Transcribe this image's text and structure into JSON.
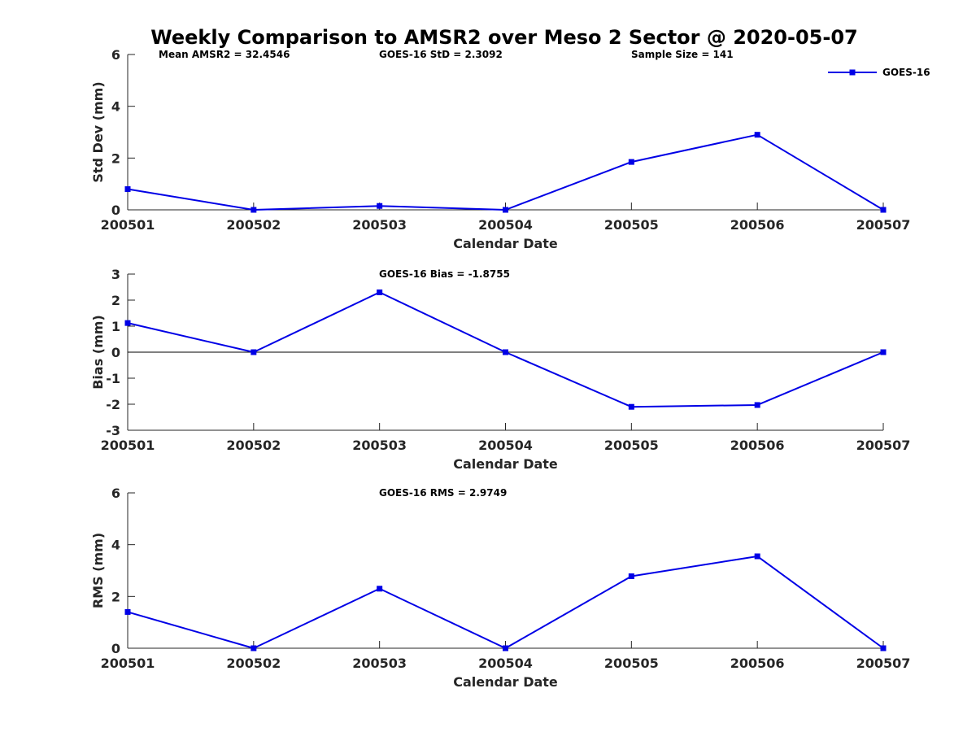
{
  "title": "Weekly Comparison to AMSR2 over Meso 2 Sector @ 2020-05-07",
  "colors": {
    "series": "#0000e6",
    "axis": "#262626",
    "zero_line": "#000000"
  },
  "legend": {
    "label": "GOES-16",
    "placement": "top-right"
  },
  "chart_data": [
    {
      "type": "line",
      "x": [
        "200501",
        "200502",
        "200503",
        "200504",
        "200505",
        "200506",
        "200507"
      ],
      "series": [
        {
          "name": "GOES-16",
          "values": [
            0.8,
            0.0,
            0.15,
            0.0,
            1.85,
            2.9,
            0.0
          ]
        }
      ],
      "xlabel": "Calendar Date",
      "ylabel": "Std Dev (mm)",
      "ylim": [
        0,
        6
      ],
      "yticks": [
        "0",
        "2",
        "4",
        "6"
      ],
      "annotations": [
        "Mean AMSR2 = 32.4546",
        "GOES-16 StD = 2.3092",
        "Sample Size = 141"
      ],
      "grid": false
    },
    {
      "type": "line",
      "x": [
        "200501",
        "200502",
        "200503",
        "200504",
        "200505",
        "200506",
        "200507"
      ],
      "series": [
        {
          "name": "GOES-16",
          "values": [
            1.12,
            0.0,
            2.3,
            0.0,
            -2.1,
            -2.03,
            0.0
          ]
        }
      ],
      "xlabel": "Calendar Date",
      "ylabel": "Bias (mm)",
      "ylim": [
        -3,
        3
      ],
      "yticks": [
        "-3",
        "-2",
        "-1",
        "0",
        "1",
        "2",
        "3"
      ],
      "annotations": [
        "GOES-16 Bias  = -1.8755"
      ],
      "zero_line": true,
      "grid": false
    },
    {
      "type": "line",
      "x": [
        "200501",
        "200502",
        "200503",
        "200504",
        "200505",
        "200506",
        "200507"
      ],
      "series": [
        {
          "name": "GOES-16",
          "values": [
            1.4,
            0.0,
            2.3,
            0.0,
            2.78,
            3.55,
            0.0
          ]
        }
      ],
      "xlabel": "Calendar Date",
      "ylabel": "RMS (mm)",
      "ylim": [
        0,
        6
      ],
      "yticks": [
        "0",
        "2",
        "4",
        "6"
      ],
      "annotations": [
        "GOES-16 RMS = 2.9749"
      ],
      "grid": false
    }
  ]
}
